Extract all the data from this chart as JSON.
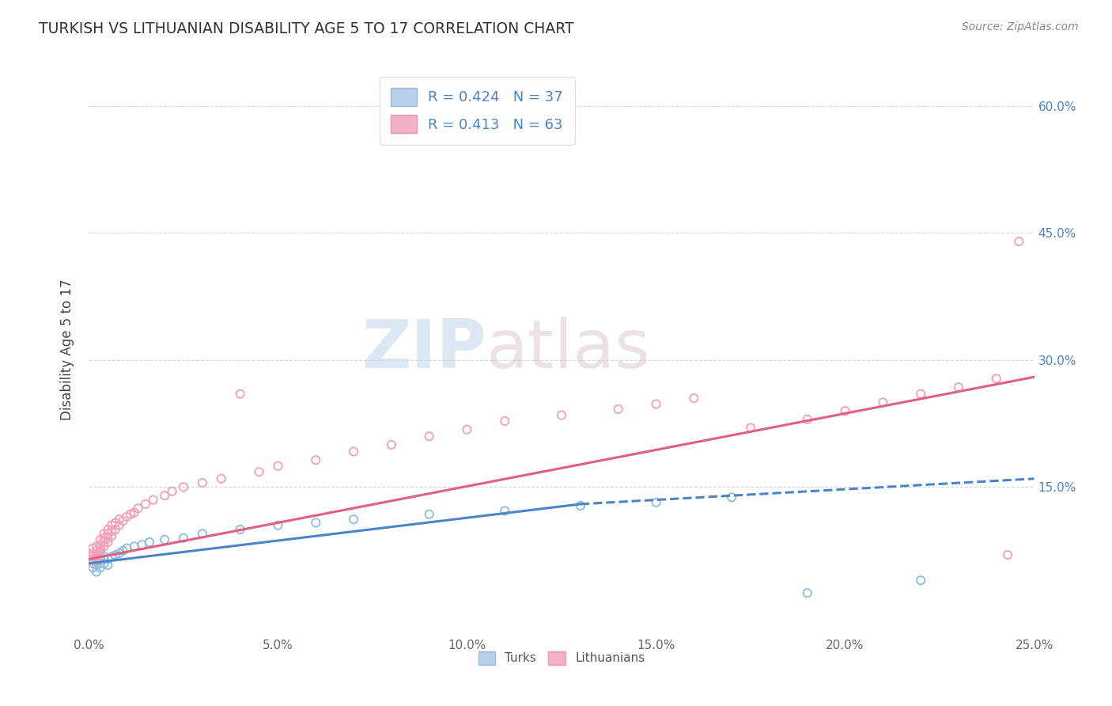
{
  "title": "TURKISH VS LITHUANIAN DISABILITY AGE 5 TO 17 CORRELATION CHART",
  "source_text": "Source: ZipAtlas.com",
  "ylabel": "Disability Age 5 to 17",
  "xlim": [
    0.0,
    0.25
  ],
  "ylim": [
    -0.025,
    0.65
  ],
  "xtick_labels": [
    "0.0%",
    "5.0%",
    "10.0%",
    "15.0%",
    "20.0%",
    "25.0%"
  ],
  "xtick_values": [
    0.0,
    0.05,
    0.1,
    0.15,
    0.2,
    0.25
  ],
  "ytick_labels_right": [
    "60.0%",
    "45.0%",
    "30.0%",
    "15.0%"
  ],
  "ytick_values_right": [
    0.6,
    0.45,
    0.3,
    0.15
  ],
  "turk_color": "#89bde0",
  "lith_color": "#f0a0b8",
  "turk_line_color": "#4a85c8",
  "lith_line_color": "#e06080",
  "R_turk": 0.424,
  "N_turk": 37,
  "R_lith": 0.413,
  "N_lith": 63,
  "background_color": "#ffffff",
  "grid_color": "#cccccc",
  "watermark_zip": "ZIP",
  "watermark_atlas": "atlas",
  "turks_x": [
    0.001,
    0.001,
    0.001,
    0.002,
    0.002,
    0.002,
    0.002,
    0.003,
    0.003,
    0.003,
    0.003,
    0.004,
    0.004,
    0.005,
    0.005,
    0.006,
    0.007,
    0.008,
    0.009,
    0.01,
    0.012,
    0.014,
    0.016,
    0.02,
    0.025,
    0.03,
    0.04,
    0.05,
    0.06,
    0.07,
    0.09,
    0.11,
    0.13,
    0.15,
    0.17,
    0.19,
    0.22
  ],
  "turks_y": [
    0.055,
    0.06,
    0.065,
    0.05,
    0.058,
    0.062,
    0.07,
    0.055,
    0.06,
    0.065,
    0.072,
    0.06,
    0.068,
    0.058,
    0.065,
    0.068,
    0.07,
    0.072,
    0.075,
    0.078,
    0.08,
    0.082,
    0.085,
    0.088,
    0.09,
    0.095,
    0.1,
    0.105,
    0.108,
    0.112,
    0.118,
    0.122,
    0.128,
    0.132,
    0.138,
    0.025,
    0.04
  ],
  "lith_x": [
    0.001,
    0.001,
    0.001,
    0.001,
    0.002,
    0.002,
    0.002,
    0.002,
    0.002,
    0.003,
    0.003,
    0.003,
    0.003,
    0.003,
    0.004,
    0.004,
    0.004,
    0.004,
    0.005,
    0.005,
    0.005,
    0.005,
    0.006,
    0.006,
    0.006,
    0.007,
    0.007,
    0.008,
    0.008,
    0.009,
    0.01,
    0.011,
    0.012,
    0.013,
    0.015,
    0.017,
    0.02,
    0.022,
    0.025,
    0.03,
    0.035,
    0.04,
    0.045,
    0.05,
    0.06,
    0.07,
    0.08,
    0.09,
    0.1,
    0.11,
    0.125,
    0.14,
    0.15,
    0.16,
    0.175,
    0.19,
    0.2,
    0.21,
    0.22,
    0.23,
    0.24,
    0.243,
    0.246
  ],
  "lith_y": [
    0.068,
    0.072,
    0.06,
    0.078,
    0.065,
    0.07,
    0.075,
    0.08,
    0.068,
    0.072,
    0.078,
    0.082,
    0.088,
    0.075,
    0.08,
    0.085,
    0.09,
    0.095,
    0.085,
    0.09,
    0.095,
    0.1,
    0.092,
    0.098,
    0.105,
    0.1,
    0.108,
    0.105,
    0.112,
    0.11,
    0.115,
    0.118,
    0.12,
    0.125,
    0.13,
    0.135,
    0.14,
    0.145,
    0.15,
    0.155,
    0.16,
    0.26,
    0.168,
    0.175,
    0.182,
    0.192,
    0.2,
    0.21,
    0.218,
    0.228,
    0.235,
    0.242,
    0.248,
    0.255,
    0.22,
    0.23,
    0.24,
    0.25,
    0.26,
    0.268,
    0.278,
    0.07,
    0.44
  ],
  "turk_line_x0": 0.0,
  "turk_line_x_solid_end": 0.13,
  "turk_line_x_dash_end": 0.25,
  "turk_line_y0": 0.06,
  "turk_line_y_solid_end": 0.13,
  "turk_line_y_dash_end": 0.16,
  "lith_line_x0": 0.0,
  "lith_line_x1": 0.25,
  "lith_line_y0": 0.065,
  "lith_line_y1": 0.28
}
